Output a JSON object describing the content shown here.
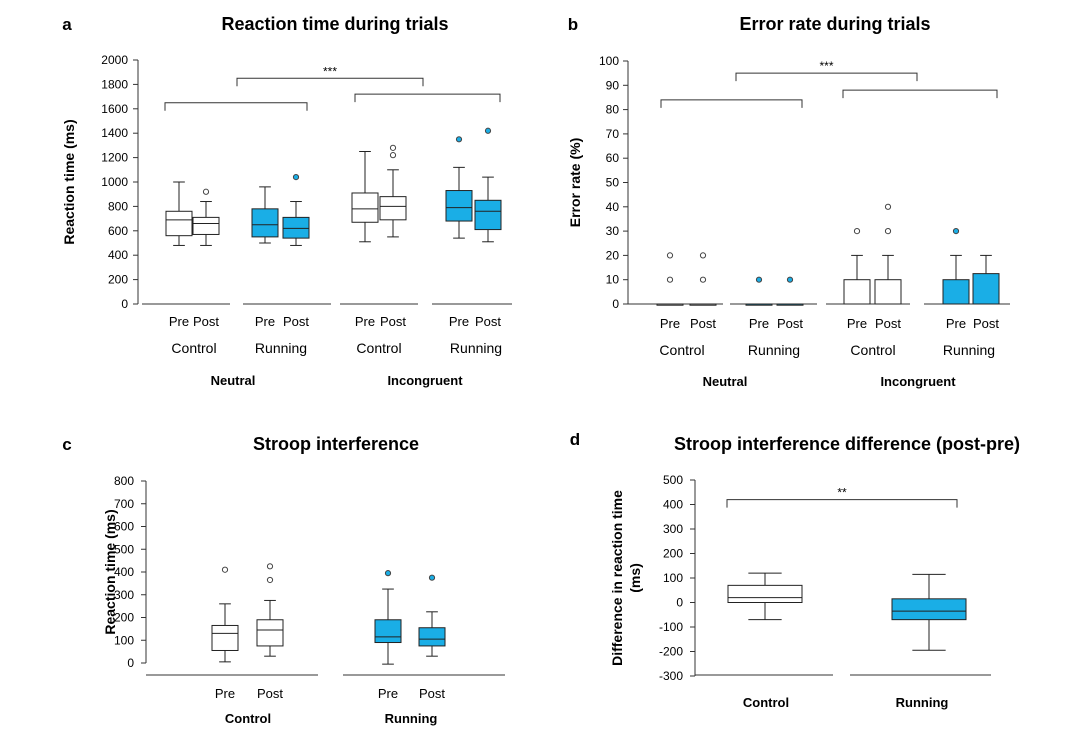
{
  "colors": {
    "control": "#ffffff",
    "running": "#1aaee6",
    "stroke": "#222222",
    "outlier_running": "#1aaee6"
  },
  "chart_data": [
    {
      "id": "a",
      "panel_label": "a",
      "type": "boxplot",
      "title": "Reaction time during trials",
      "ylabel": "Reaction time (ms)",
      "ylim": [
        0,
        2000
      ],
      "yticks": [
        0,
        200,
        400,
        600,
        800,
        1000,
        1200,
        1400,
        1600,
        1800,
        2000
      ],
      "yticklabels": [
        "0",
        "200",
        "400",
        "600",
        "800",
        "1000",
        "1200",
        "1400",
        "1600",
        "1800",
        "2000"
      ],
      "group_labels": [
        "Control",
        "Running",
        "Control",
        "Running"
      ],
      "condition_labels": [
        "Neutral",
        "Incongruent"
      ],
      "boxes": [
        {
          "label": "Pre",
          "group": 0,
          "color": "control",
          "whisker_low": 480,
          "q1": 560,
          "median": 690,
          "q3": 760,
          "whisker_high": 1000,
          "outliers": []
        },
        {
          "label": "Post",
          "group": 0,
          "color": "control",
          "whisker_low": 480,
          "q1": 570,
          "median": 660,
          "q3": 710,
          "whisker_high": 840,
          "outliers": [
            920
          ]
        },
        {
          "label": "Pre",
          "group": 1,
          "color": "running",
          "whisker_low": 500,
          "q1": 550,
          "median": 650,
          "q3": 780,
          "whisker_high": 960,
          "outliers": []
        },
        {
          "label": "Post",
          "group": 1,
          "color": "running",
          "whisker_low": 480,
          "q1": 540,
          "median": 620,
          "q3": 710,
          "whisker_high": 840,
          "outliers": [
            1040
          ]
        },
        {
          "label": "Pre",
          "group": 2,
          "color": "control",
          "whisker_low": 510,
          "q1": 670,
          "median": 780,
          "q3": 910,
          "whisker_high": 1250,
          "outliers": []
        },
        {
          "label": "Post",
          "group": 2,
          "color": "control",
          "whisker_low": 550,
          "q1": 690,
          "median": 800,
          "q3": 880,
          "whisker_high": 1100,
          "outliers": [
            1220,
            1280
          ]
        },
        {
          "label": "Pre",
          "group": 3,
          "color": "running",
          "whisker_low": 540,
          "q1": 680,
          "median": 790,
          "q3": 930,
          "whisker_high": 1120,
          "outliers": [
            1350
          ]
        },
        {
          "label": "Post",
          "group": 3,
          "color": "running",
          "whisker_low": 510,
          "q1": 610,
          "median": 760,
          "q3": 850,
          "whisker_high": 1040,
          "outliers": [
            1420
          ]
        }
      ],
      "significance": [
        {
          "text": "***",
          "y": 1850,
          "from": "neutral",
          "to": "incongruent"
        },
        {
          "text": "",
          "y": 1650,
          "bracket": "neutral"
        },
        {
          "text": "",
          "y": 1720,
          "bracket": "incongruent"
        }
      ]
    },
    {
      "id": "b",
      "panel_label": "b",
      "type": "boxplot",
      "title": "Error rate during trials",
      "ylabel": "Error rate (%)",
      "ylim": [
        0,
        100
      ],
      "yticks": [
        0,
        10,
        20,
        30,
        40,
        50,
        60,
        70,
        80,
        90,
        100
      ],
      "yticklabels": [
        "0",
        "10",
        "20",
        "30",
        "40",
        "50",
        "60",
        "70",
        "80",
        "90",
        "100"
      ],
      "group_labels": [
        "Control",
        "Running",
        "Control",
        "Running"
      ],
      "condition_labels": [
        "Neutral",
        "Incongruent"
      ],
      "boxes": [
        {
          "label": "Pre",
          "group": 0,
          "color": "control",
          "whisker_low": 0,
          "q1": 0,
          "median": 0,
          "q3": 0,
          "whisker_high": 0,
          "outliers": [
            10,
            20
          ]
        },
        {
          "label": "Post",
          "group": 0,
          "color": "control",
          "whisker_low": 0,
          "q1": 0,
          "median": 0,
          "q3": 0,
          "whisker_high": 0,
          "outliers": [
            10,
            20
          ]
        },
        {
          "label": "Pre",
          "group": 1,
          "color": "running",
          "whisker_low": 0,
          "q1": 0,
          "median": 0,
          "q3": 0,
          "whisker_high": 0,
          "outliers": [
            10
          ]
        },
        {
          "label": "Post",
          "group": 1,
          "color": "running",
          "whisker_low": 0,
          "q1": 0,
          "median": 0,
          "q3": 0,
          "whisker_high": 0,
          "outliers": [
            10
          ]
        },
        {
          "label": "Pre",
          "group": 2,
          "color": "control",
          "whisker_low": 0,
          "q1": 0,
          "median": 0,
          "q3": 10,
          "whisker_high": 20,
          "outliers": [
            30
          ]
        },
        {
          "label": "Post",
          "group": 2,
          "color": "control",
          "whisker_low": 0,
          "q1": 0,
          "median": 0,
          "q3": 10,
          "whisker_high": 20,
          "outliers": [
            30,
            40
          ]
        },
        {
          "label": "Pre",
          "group": 3,
          "color": "running",
          "whisker_low": 0,
          "q1": 0,
          "median": 0,
          "q3": 10,
          "whisker_high": 20,
          "outliers": [
            30
          ]
        },
        {
          "label": "Post",
          "group": 3,
          "color": "running",
          "whisker_low": 0,
          "q1": 0,
          "median": 0,
          "q3": 12.5,
          "whisker_high": 20,
          "outliers": []
        }
      ],
      "significance": [
        {
          "text": "***",
          "y": 95,
          "from": "neutral",
          "to": "incongruent"
        },
        {
          "text": "",
          "y": 84,
          "bracket": "neutral"
        },
        {
          "text": "",
          "y": 88,
          "bracket": "incongruent"
        }
      ]
    },
    {
      "id": "c",
      "panel_label": "c",
      "type": "boxplot",
      "title": "Stroop interference",
      "ylabel": "Reaction time (ms)",
      "ylim": [
        0,
        800
      ],
      "yticks": [
        0,
        100,
        200,
        300,
        400,
        500,
        600,
        700,
        800
      ],
      "yticklabels": [
        "0",
        "100",
        "200",
        "300",
        "400",
        "500",
        "600",
        "700",
        "800"
      ],
      "group_labels": [
        "Control",
        "Running"
      ],
      "boxes": [
        {
          "label": "Pre",
          "group": 0,
          "color": "control",
          "whisker_low": 5,
          "q1": 55,
          "median": 130,
          "q3": 165,
          "whisker_high": 260,
          "outliers": [
            410
          ]
        },
        {
          "label": "Post",
          "group": 0,
          "color": "control",
          "whisker_low": 30,
          "q1": 75,
          "median": 145,
          "q3": 190,
          "whisker_high": 275,
          "outliers": [
            365,
            425
          ]
        },
        {
          "label": "Pre",
          "group": 1,
          "color": "running",
          "whisker_low": -5,
          "q1": 90,
          "median": 115,
          "q3": 190,
          "whisker_high": 325,
          "outliers": [
            395
          ]
        },
        {
          "label": "Post",
          "group": 1,
          "color": "running",
          "whisker_low": 30,
          "q1": 75,
          "median": 105,
          "q3": 155,
          "whisker_high": 225,
          "outliers": [
            375
          ]
        }
      ]
    },
    {
      "id": "d",
      "panel_label": "d",
      "type": "boxplot",
      "title": "Stroop interference difference (post-pre)",
      "ylabel": "Difference in reaction time (ms)",
      "ylabel_lines": [
        "Difference in reaction time",
        "(ms)"
      ],
      "ylim": [
        -300,
        500
      ],
      "yticks": [
        -300,
        -200,
        -100,
        0,
        100,
        200,
        300,
        400,
        500
      ],
      "yticklabels": [
        "-300",
        "-200",
        "-100",
        "0",
        "100",
        "200",
        "300",
        "400",
        "500"
      ],
      "group_labels": [
        "Control",
        "Running"
      ],
      "boxes": [
        {
          "label": "",
          "group": 0,
          "color": "control",
          "whisker_low": -70,
          "q1": 0,
          "median": 20,
          "q3": 70,
          "whisker_high": 120,
          "outliers": []
        },
        {
          "label": "",
          "group": 1,
          "color": "running",
          "whisker_low": -195,
          "q1": -70,
          "median": -35,
          "q3": 15,
          "whisker_high": 115,
          "outliers": []
        }
      ],
      "significance": [
        {
          "text": "**",
          "y": 420,
          "from": "Control",
          "to": "Running"
        }
      ]
    }
  ]
}
